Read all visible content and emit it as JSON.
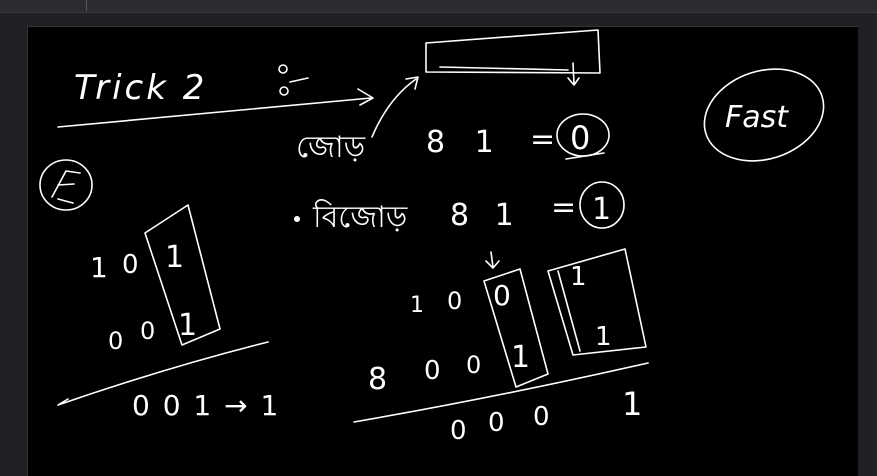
{
  "window": {
    "tab_left": "",
    "tab_right": ""
  },
  "board": {
    "title": "Trick 2",
    "fast_label": "Fast",
    "row1": {
      "word": "জোড়",
      "lhs": "8 1",
      "eq": "=",
      "result": "0"
    },
    "row2": {
      "word": "বিজোড়",
      "lhs": "8 1",
      "eq": "=",
      "result": "1"
    },
    "left_example": {
      "top_row": [
        "1",
        "0",
        "1"
      ],
      "bottom_row": [
        "0",
        "0",
        "1"
      ],
      "result": "0 0 1 → 1"
    },
    "mid_example": {
      "top_row": [
        "1",
        "0",
        "0"
      ],
      "bottom_row": [
        "8",
        "0",
        "0",
        "1"
      ],
      "result": [
        "0",
        "0",
        "0",
        "1"
      ]
    },
    "box_values": [
      "1",
      "1"
    ]
  }
}
